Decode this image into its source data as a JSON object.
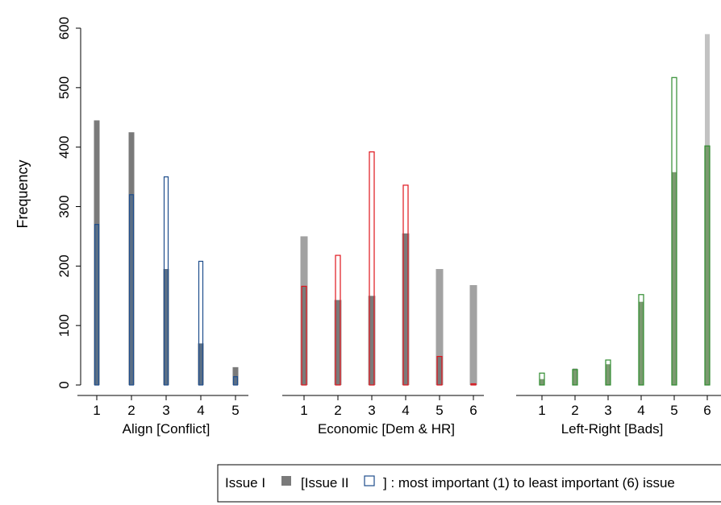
{
  "chart_data": {
    "type": "bar",
    "ylabel": "Frequency",
    "ylim": [
      0,
      600
    ],
    "yticks": [
      0,
      100,
      200,
      300,
      400,
      500,
      600
    ],
    "colors": {
      "issue1_dark": "#7a7a7a",
      "issue1_light": "#a2a2a2",
      "issue1_lightest": "#c2c2c2",
      "align_outline": "#1f4e8c",
      "align_fill": "#5a6f86",
      "economic_outline": "#e0141c",
      "leftright_outline": "#2e8b2e",
      "leftright_fill": "#7a9a6f"
    },
    "panels": [
      {
        "xlabel": "Align [Conflict]",
        "categories": [
          "1",
          "2",
          "3",
          "4",
          "5"
        ],
        "series": [
          {
            "name": "Issue I",
            "values": [
              445,
              425,
              195,
              70,
              30
            ]
          },
          {
            "name": "Issue II",
            "values": [
              270,
              320,
              350,
              208,
              14
            ]
          }
        ]
      },
      {
        "xlabel": "Economic [Dem & HR]",
        "categories": [
          "1",
          "2",
          "3",
          "4",
          "5",
          "6"
        ],
        "series": [
          {
            "name": "Issue I",
            "values": [
              250,
              143,
              150,
              255,
              195,
              168
            ]
          },
          {
            "name": "Issue II",
            "values": [
              166,
              218,
              392,
              336,
              48,
              2
            ]
          }
        ]
      },
      {
        "xlabel": "Left-Right [Bads]",
        "categories": [
          "1",
          "2",
          "3",
          "4",
          "5",
          "6"
        ],
        "series": [
          {
            "name": "Issue I",
            "values": [
              10,
              28,
              35,
              140,
              358,
              590
            ]
          },
          {
            "name": "Issue II",
            "values": [
              20,
              26,
              42,
              152,
              517,
              402
            ]
          }
        ]
      }
    ],
    "legend": {
      "issue1_label": "Issue I",
      "issue2_label": "[Issue II",
      "description": "] : most important (1) to least important (6) issue"
    }
  }
}
